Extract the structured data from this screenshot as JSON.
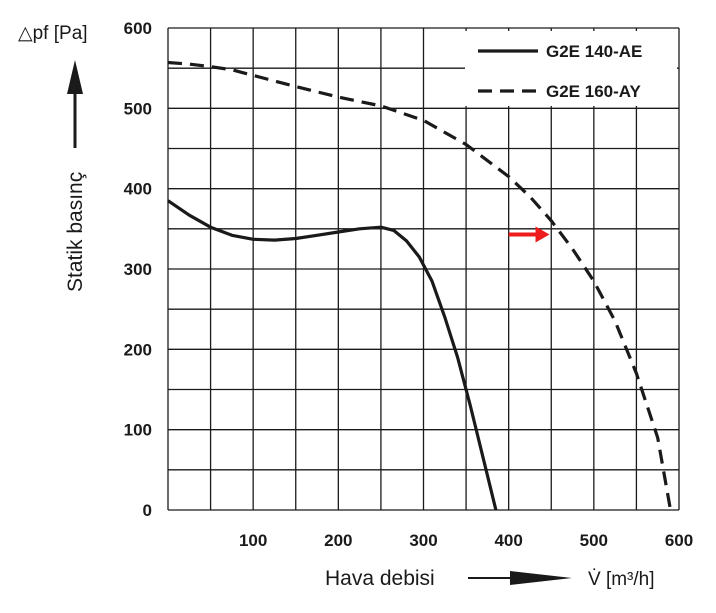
{
  "chart_data": {
    "type": "line",
    "xlabel": "Hava debisi",
    "xunit": "V̇ [m³/h]",
    "ylabel": "Statik basınç",
    "yunit": "△pf [Pa]",
    "xlim": [
      0,
      600
    ],
    "ylim": [
      0,
      600
    ],
    "xticks": [
      "100",
      "200",
      "300",
      "400",
      "500",
      "600"
    ],
    "yticks": [
      "0",
      "100",
      "200",
      "300",
      "400",
      "500",
      "600"
    ],
    "grid": true,
    "grid_step_x": 50,
    "grid_step_y": 50,
    "legend_position": "top-right",
    "series": [
      {
        "name": "G2E 140-AE",
        "style": "solid",
        "color": "#1a1a1a",
        "points": [
          [
            0,
            385
          ],
          [
            25,
            367
          ],
          [
            50,
            352
          ],
          [
            75,
            342
          ],
          [
            100,
            337
          ],
          [
            125,
            336
          ],
          [
            150,
            338
          ],
          [
            175,
            342
          ],
          [
            200,
            346
          ],
          [
            225,
            350
          ],
          [
            250,
            352
          ],
          [
            265,
            348
          ],
          [
            280,
            335
          ],
          [
            295,
            315
          ],
          [
            310,
            285
          ],
          [
            325,
            240
          ],
          [
            340,
            190
          ],
          [
            355,
            130
          ],
          [
            370,
            65
          ],
          [
            385,
            0
          ]
        ]
      },
      {
        "name": "G2E 160-AY",
        "style": "dashed",
        "color": "#1a1a1a",
        "points": [
          [
            0,
            557
          ],
          [
            25,
            555
          ],
          [
            50,
            552
          ],
          [
            75,
            548
          ],
          [
            100,
            541
          ],
          [
            150,
            527
          ],
          [
            200,
            514
          ],
          [
            250,
            503
          ],
          [
            300,
            485
          ],
          [
            350,
            455
          ],
          [
            400,
            415
          ],
          [
            425,
            390
          ],
          [
            450,
            360
          ],
          [
            475,
            325
          ],
          [
            500,
            285
          ],
          [
            525,
            235
          ],
          [
            550,
            170
          ],
          [
            575,
            90
          ],
          [
            590,
            0
          ]
        ]
      }
    ],
    "annotations": [
      {
        "type": "arrow",
        "color": "#ee1c1c",
        "x_from": 400,
        "x_to": 448,
        "y": 343
      }
    ]
  }
}
